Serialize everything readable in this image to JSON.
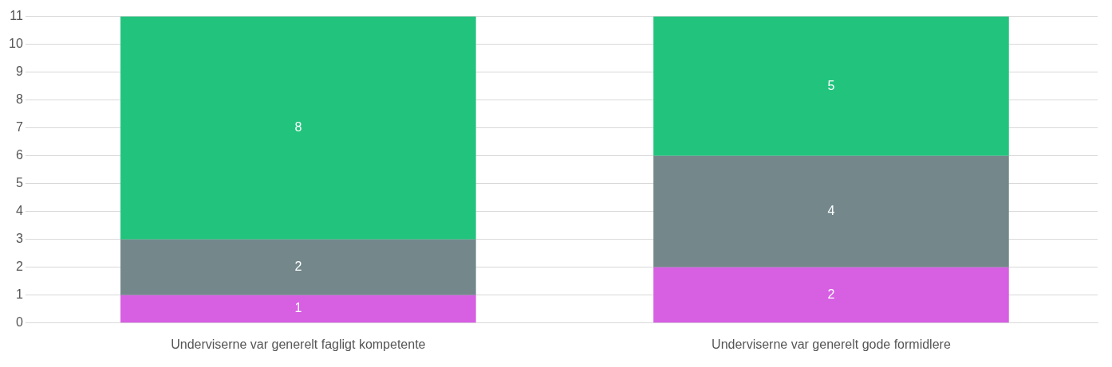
{
  "chart_data": {
    "type": "bar",
    "stacked": true,
    "categories": [
      "Underviserne var generelt fagligt kompetente",
      "Underviserne var generelt gode formidlere"
    ],
    "series": [
      {
        "color": "#d65fe2",
        "values": [
          1,
          2
        ]
      },
      {
        "color": "#74888c",
        "values": [
          2,
          4
        ]
      },
      {
        "color": "#22c47d",
        "values": [
          8,
          5
        ]
      }
    ],
    "ylim": [
      0,
      11
    ],
    "yticks": [
      0,
      1,
      2,
      3,
      4,
      5,
      6,
      7,
      8,
      9,
      10,
      11
    ],
    "grid": "y",
    "data_labels": true,
    "legend": false
  }
}
